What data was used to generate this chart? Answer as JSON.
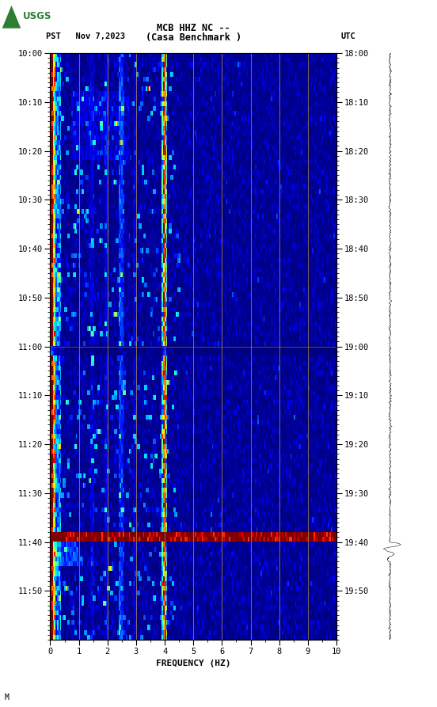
{
  "title_line1": "MCB HHZ NC --",
  "title_line2": "(Casa Benchmark )",
  "left_label": "PST   Nov 7,2023",
  "right_label": "UTC",
  "left_yticks": [
    "10:00",
    "10:10",
    "10:20",
    "10:30",
    "10:40",
    "10:50",
    "11:00",
    "11:10",
    "11:20",
    "11:30",
    "11:40",
    "11:50"
  ],
  "right_yticks": [
    "18:00",
    "18:10",
    "18:20",
    "18:30",
    "18:40",
    "18:50",
    "19:00",
    "19:10",
    "19:20",
    "19:30",
    "19:40",
    "19:50"
  ],
  "xlabel": "FREQUENCY (HZ)",
  "xticks": [
    0,
    1,
    2,
    3,
    4,
    5,
    6,
    7,
    8,
    9,
    10
  ],
  "figwidth": 5.52,
  "figheight": 8.93,
  "background_color": "#ffffff",
  "seed": 42,
  "footer_text": "M"
}
